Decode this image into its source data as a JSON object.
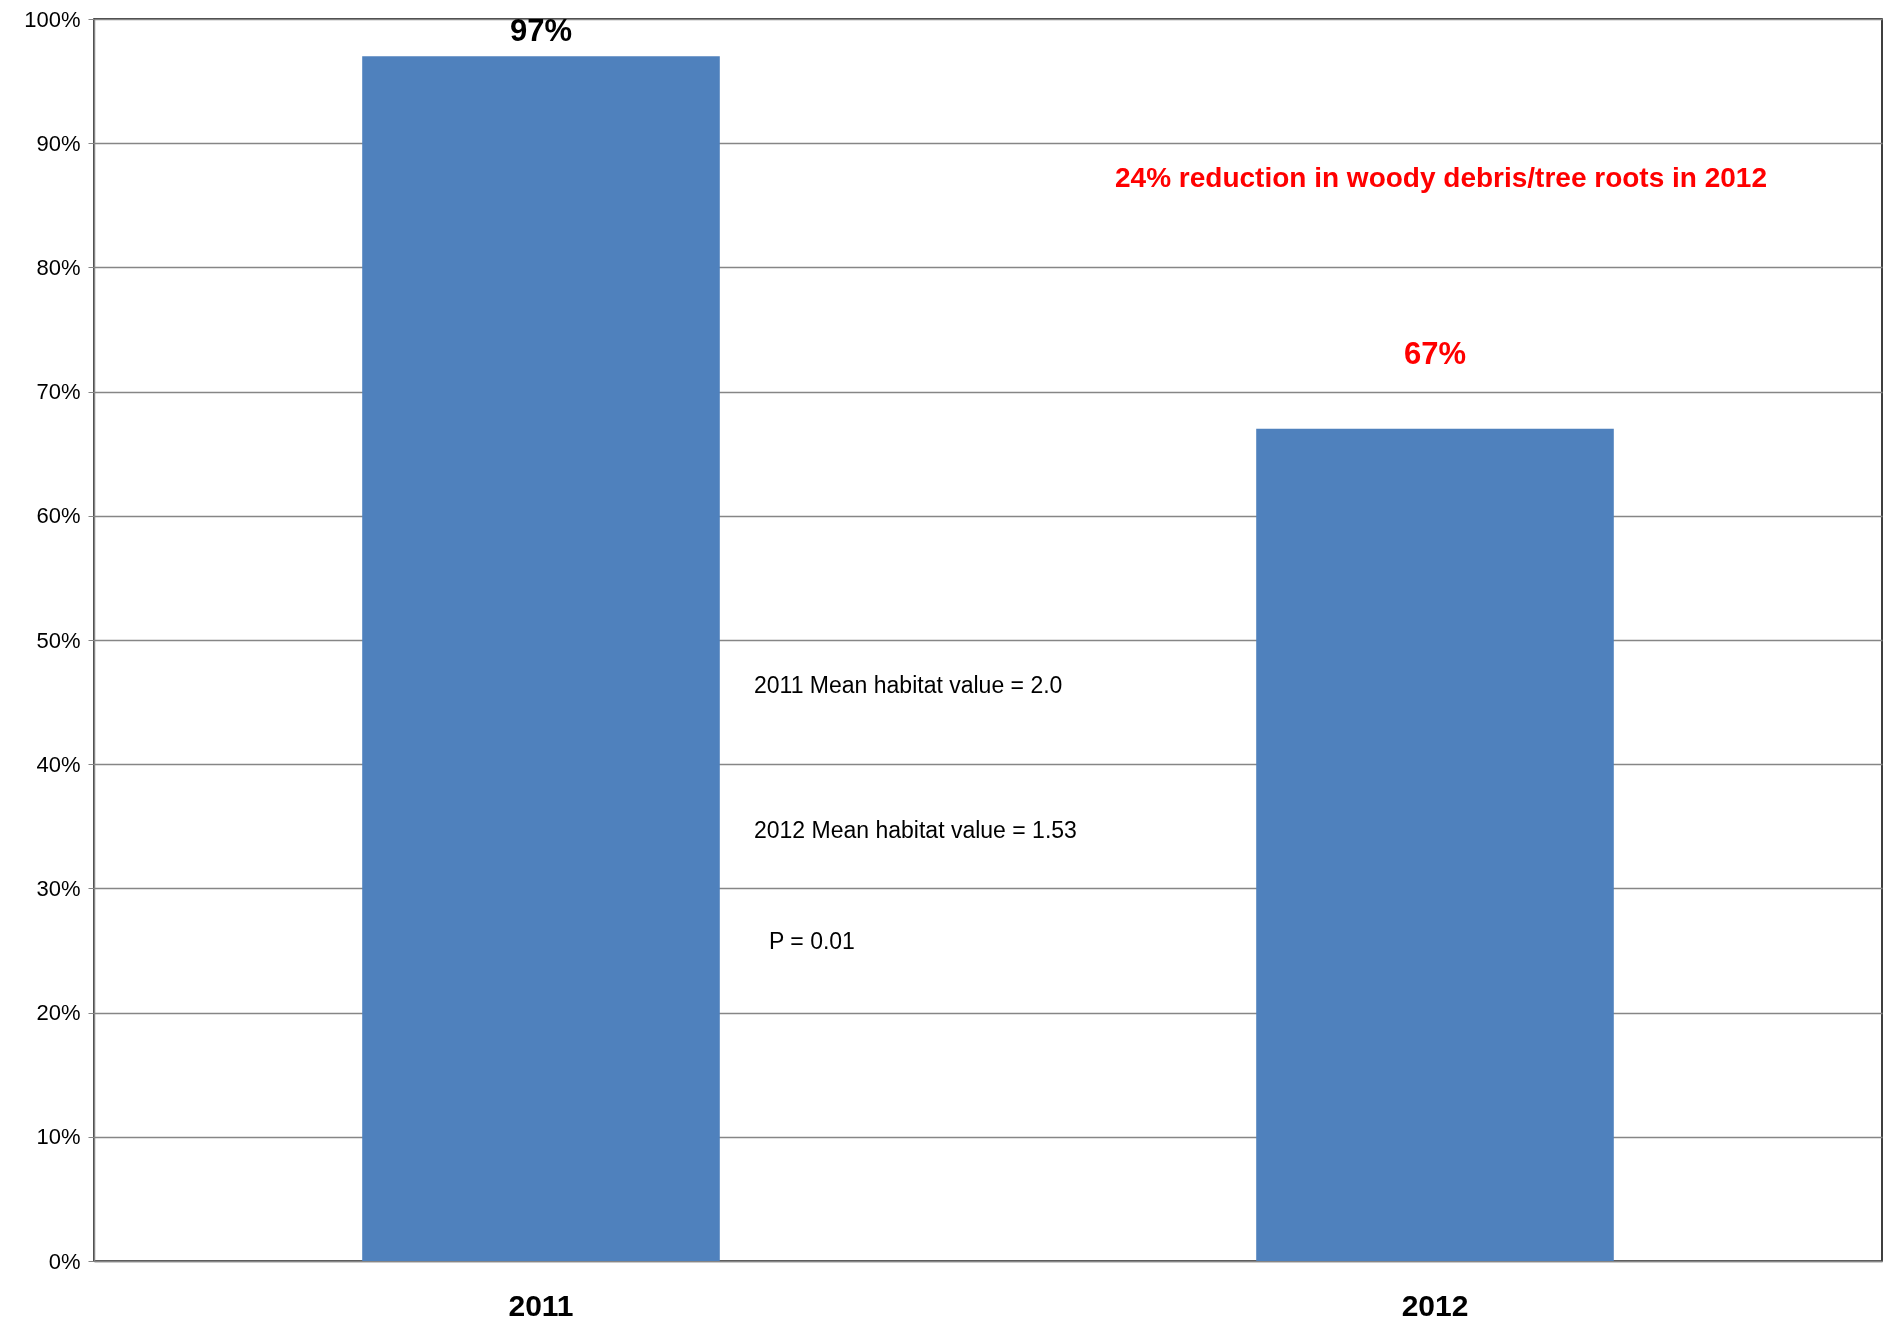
{
  "chart_data": {
    "type": "bar",
    "categories": [
      "2011",
      "2012"
    ],
    "values": [
      97,
      67
    ],
    "color": "#4f81bd",
    "ylim": [
      0,
      100
    ],
    "yticks": [
      {
        "value": 0,
        "label": "0%"
      },
      {
        "value": 10,
        "label": "10%"
      },
      {
        "value": 20,
        "label": "20%"
      },
      {
        "value": 30,
        "label": "30%"
      },
      {
        "value": 40,
        "label": "40%"
      },
      {
        "value": 50,
        "label": "50%"
      },
      {
        "value": 60,
        "label": "60%"
      },
      {
        "value": 70,
        "label": "70%"
      },
      {
        "value": 80,
        "label": "80%"
      },
      {
        "value": 90,
        "label": "90%"
      },
      {
        "value": 100,
        "label": "100%"
      }
    ],
    "grid": "y",
    "value_labels": [
      "97%",
      "67%"
    ],
    "annotations": [
      "24% reduction in woody debris/tree roots in 2012",
      "2011 Mean habitat value = 2.0",
      "2012 Mean habitat value = 1.53",
      "P = 0.01"
    ]
  }
}
